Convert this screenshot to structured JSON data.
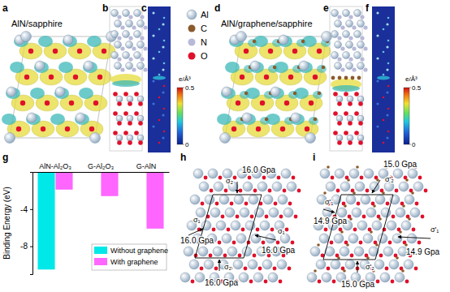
{
  "panels": {
    "a": {
      "label": "a",
      "title": "AlN/sapphire"
    },
    "b": {
      "label": "b"
    },
    "c": {
      "label": "c",
      "colorbar": {
        "label": "e/Å³",
        "range": [
          0,
          0.5
        ],
        "ticks": [
          0.5,
          0
        ]
      }
    },
    "d": {
      "label": "d",
      "title": "AlN/graphene/sapphire"
    },
    "e": {
      "label": "e"
    },
    "f": {
      "label": "f",
      "colorbar": {
        "label": "e/Å³",
        "range": [
          0,
          0.5
        ],
        "ticks": [
          0.5,
          0
        ]
      }
    },
    "g": {
      "label": "g"
    },
    "h": {
      "label": "h",
      "annotations": [
        {
          "text": "16.0 Gpa",
          "symbol": "σ₂"
        },
        {
          "text": "16.0 Gpa",
          "symbol": "σ₁"
        },
        {
          "text": "16.0 Gpa",
          "symbol": "σ₁"
        },
        {
          "text": "16.0 Gpa",
          "symbol": "σ₂"
        }
      ]
    },
    "i": {
      "label": "i",
      "annotations": [
        {
          "text": "15.0 Gpa",
          "symbol": "σ'₂"
        },
        {
          "text": "14.9 Gpa",
          "symbol": "σ'₁"
        },
        {
          "text": "14.9 Gpa",
          "symbol": "σ'₁"
        },
        {
          "text": "15.0 Gpa",
          "symbol": "σ'₂"
        }
      ]
    }
  },
  "atom_legend": [
    {
      "symbol": "Al",
      "color": "#8fa8c0"
    },
    {
      "symbol": "C",
      "color": "#8b5a2b"
    },
    {
      "symbol": "N",
      "color": "#b8b8d8"
    },
    {
      "symbol": "O",
      "color": "#e0102a"
    }
  ],
  "chart_data": {
    "type": "bar",
    "categories": [
      "AlN-Al₂O₃",
      "G-Al₂O₃",
      "G-AlN"
    ],
    "y_label": "Binding Energy (eV)",
    "ylim": [
      -11,
      0
    ],
    "yticks": [
      -8,
      -4
    ],
    "legend": "lower right",
    "series": [
      {
        "name": "Without graphene",
        "color": "#00e8e8",
        "values": [
          -10.5,
          null,
          null
        ]
      },
      {
        "name": "With graphene",
        "color": "#ff66ff",
        "values": [
          -1.9,
          -2.6,
          -6.1
        ]
      }
    ]
  }
}
